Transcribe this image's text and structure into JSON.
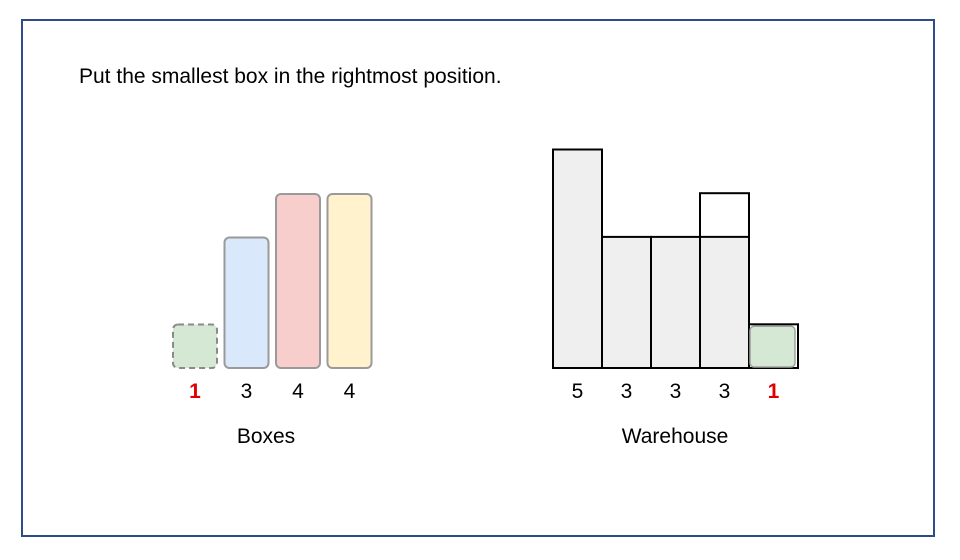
{
  "instruction": "Put the smallest box in the rightmost position.",
  "boxes": {
    "label": "Boxes",
    "items": [
      {
        "size": 1,
        "label": "1",
        "fill": "#d5e8d4",
        "stroke": "#8a8a8a",
        "dashed": true,
        "highlight": true
      },
      {
        "size": 3,
        "label": "3",
        "fill": "#dae8fc",
        "stroke": "#9a9a9a",
        "dashed": false,
        "highlight": false
      },
      {
        "size": 4,
        "label": "4",
        "fill": "#f8cecc",
        "stroke": "#9a9a9a",
        "dashed": false,
        "highlight": false
      },
      {
        "size": 4,
        "label": "4",
        "fill": "#fff2cc",
        "stroke": "#9a9a9a",
        "dashed": false,
        "highlight": false
      }
    ]
  },
  "warehouse": {
    "label": "Warehouse",
    "slots": [
      {
        "height": 5,
        "label": "5",
        "fill": 5,
        "highlight": false
      },
      {
        "height": 3,
        "label": "3",
        "fill": 3,
        "highlight": false
      },
      {
        "height": 3,
        "label": "3",
        "fill": 3,
        "highlight": false
      },
      {
        "height": 4,
        "label": "3",
        "fill": 3,
        "highlight": false
      },
      {
        "height": 1,
        "label": "1",
        "fill": 0,
        "highlight": true,
        "placed_box_size": 1
      }
    ]
  },
  "colors": {
    "frame": "#2f4b86",
    "highlight_label": "#e00000",
    "slot_fill": "#efefef",
    "placed_box_fill": "#d5e8d4",
    "placed_box_stroke": "#a0a0a0",
    "warehouse_stroke": "#000000",
    "text": "#000000"
  }
}
